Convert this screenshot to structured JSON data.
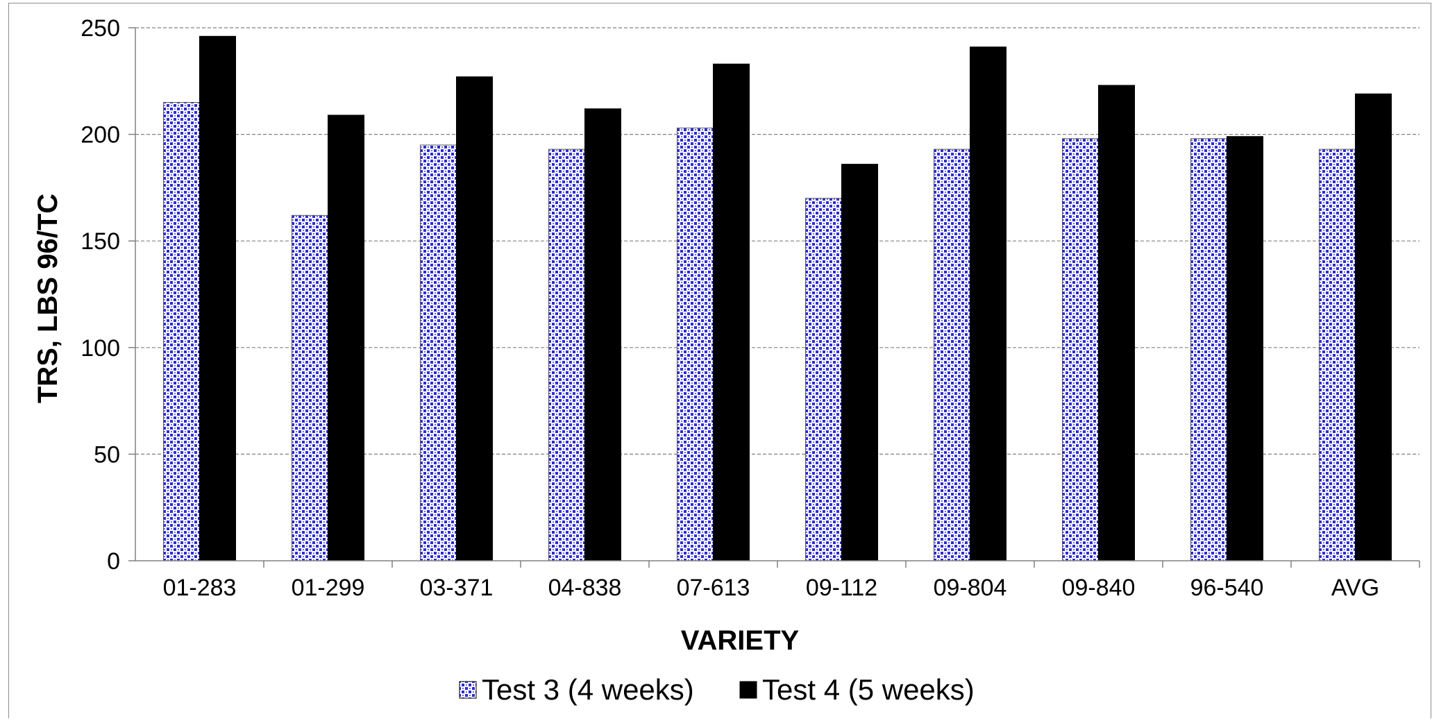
{
  "chart_data": {
    "type": "bar",
    "categories": [
      "01-283",
      "01-299",
      "03-371",
      "04-838",
      "07-613",
      "09-112",
      "09-804",
      "09-840",
      "96-540",
      "AVG"
    ],
    "series": [
      {
        "name": "Test 3 (4 weeks)",
        "values": [
          215,
          162,
          195,
          193,
          203,
          170,
          193,
          198,
          198,
          193
        ],
        "color": "#2b2bd6",
        "pattern": "blue-dotted"
      },
      {
        "name": "Test 4 (5 weeks)",
        "values": [
          246,
          209,
          227,
          212,
          233,
          186,
          241,
          223,
          199,
          219
        ],
        "color": "#000000",
        "pattern": "solid"
      }
    ],
    "title": "",
    "xlabel": "VARIETY",
    "ylabel": "TRS, LBS 96/TC",
    "ylim": [
      0,
      250
    ],
    "yticks": [
      0,
      50,
      100,
      150,
      200,
      250
    ],
    "grid": true,
    "legend_position": "bottom"
  }
}
